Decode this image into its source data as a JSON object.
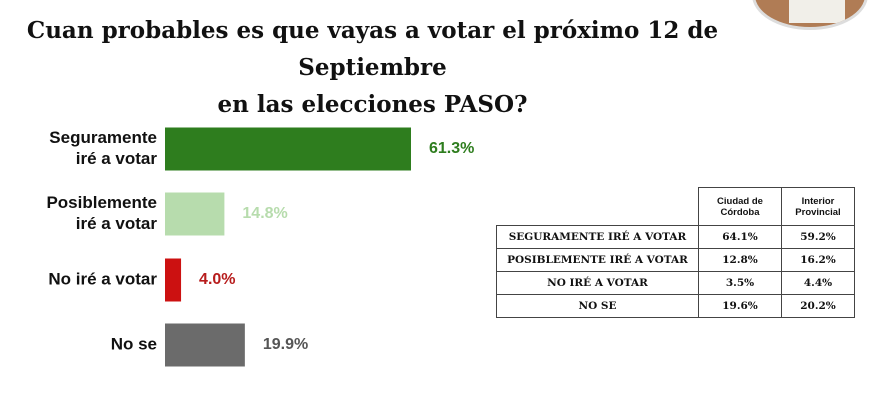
{
  "title": {
    "line1": "Cuan probables es que vayas a votar el próximo 12 de Septiembre",
    "line2": "en las elecciones PASO?"
  },
  "chart_data": {
    "type": "bar",
    "orientation": "horizontal",
    "categories": [
      [
        "Seguramente",
        "iré a votar"
      ],
      [
        "Posiblemente",
        "iré a votar"
      ],
      [
        "No iré a votar"
      ],
      [
        "No se"
      ]
    ],
    "values": [
      61.3,
      14.8,
      4.0,
      19.9
    ],
    "value_labels": [
      "61.3%",
      "14.8%",
      "4.0%",
      "19.9%"
    ],
    "colors": [
      "#2e7d1e",
      "#b7dcad",
      "#cc1111",
      "#6b6b6b"
    ],
    "label_colors": [
      "#2e7d1e",
      "#b7dcad",
      "#b71c1c",
      "#555555"
    ],
    "xlim": [
      0,
      61.3
    ]
  },
  "table": {
    "headers": [
      [
        "Ciudad de",
        "Córdoba"
      ],
      [
        "Interior",
        "Provincial"
      ]
    ],
    "rows": [
      {
        "label": "SEGURAMENTE IRÉ A VOTAR",
        "ciudad": "64.1%",
        "interior": "59.2%"
      },
      {
        "label": "POSIBLEMENTE IRÉ A VOTAR",
        "ciudad": "12.8%",
        "interior": "16.2%"
      },
      {
        "label": "NO IRÉ A VOTAR",
        "ciudad": "3.5%",
        "interior": "4.4%"
      },
      {
        "label": "NO SE",
        "ciudad": "19.6%",
        "interior": "20.2%"
      }
    ]
  }
}
